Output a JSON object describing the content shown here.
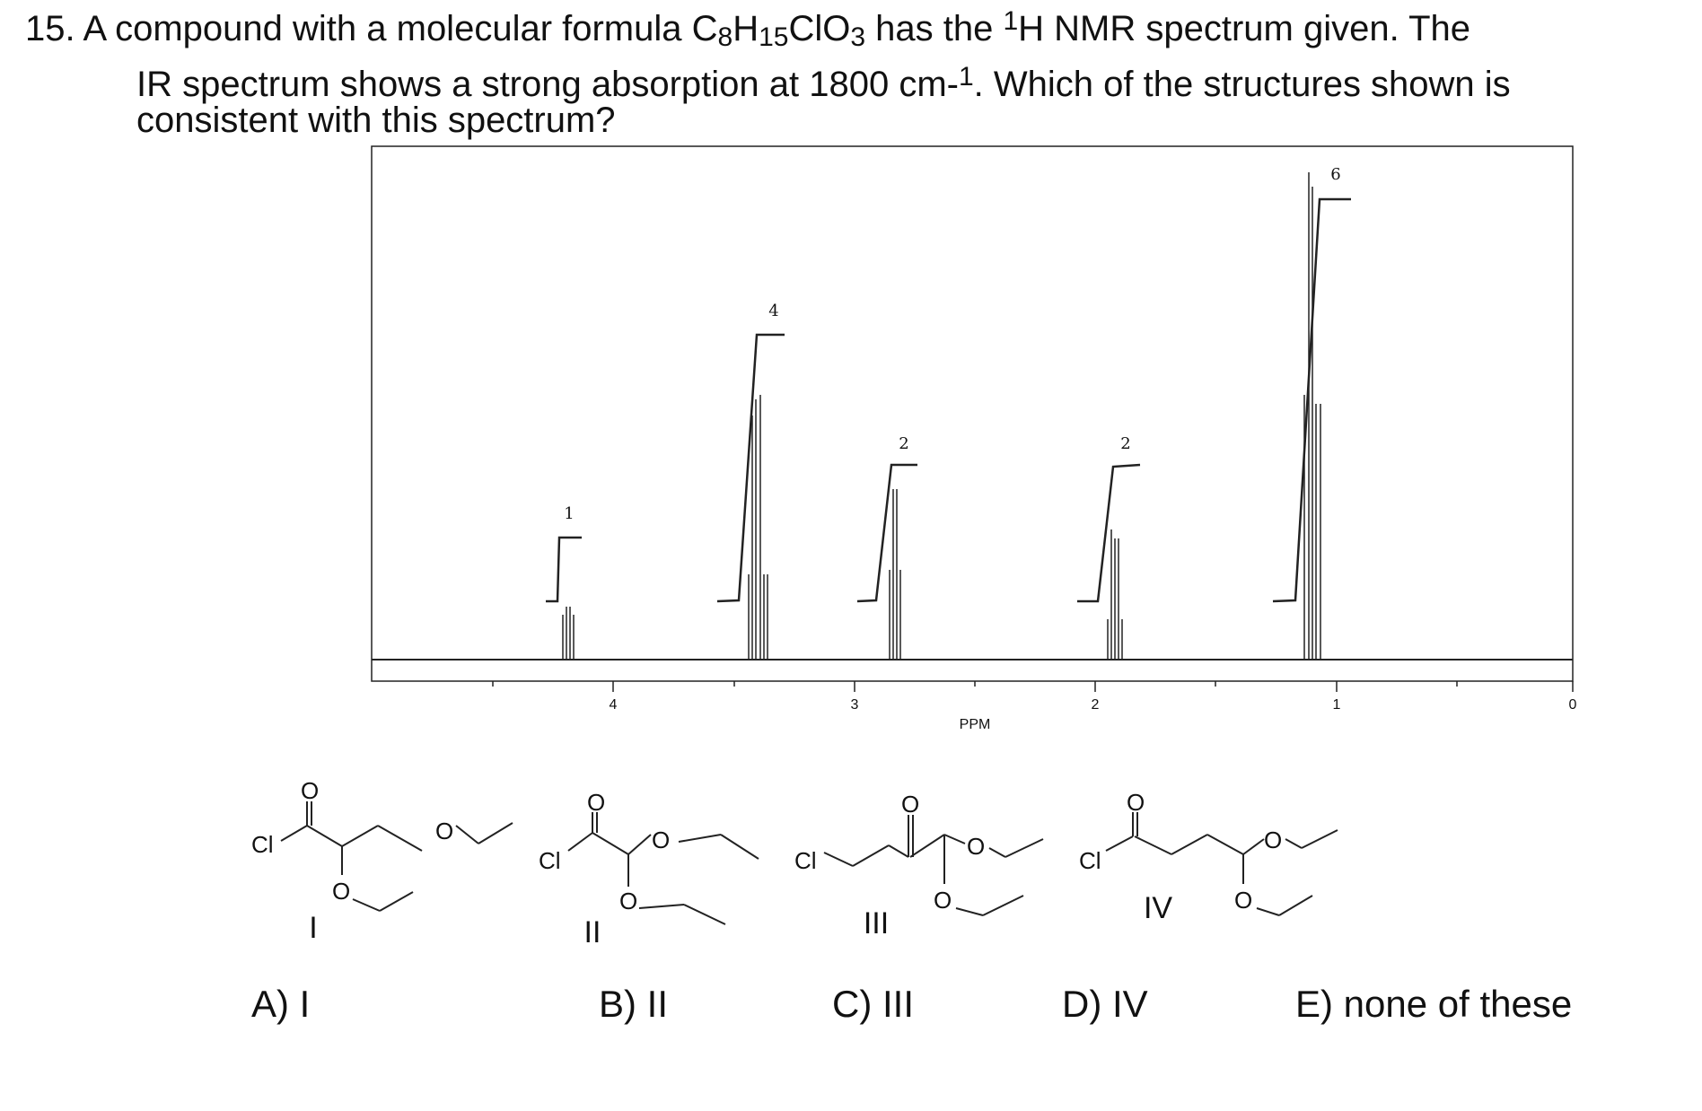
{
  "question": {
    "number": "15.",
    "line1_a": "A compound with a molecular formula C",
    "sub8": "8",
    "h": "H",
    "sub15": "15",
    "clo": "ClO",
    "sub3": "3",
    "line1_b": " has the ",
    "sup1": "1",
    "line1_c": "H NMR spectrum given.  The",
    "line2_a": "IR spectrum shows a strong absorption at 1800 cm-",
    "sup_neg1": "1",
    "line2_b": ".  Which of the structures shown is",
    "line3": "consistent with this spectrum?"
  },
  "spectrum": {
    "axis_label": "PPM",
    "ticks": [
      "4",
      "3",
      "2",
      "1",
      "0"
    ],
    "integrations": [
      "1",
      "4",
      "2",
      "2",
      "6"
    ],
    "peak_ppm": [
      4.2,
      3.45,
      2.85,
      1.95,
      1.1
    ]
  },
  "structures": {
    "I": {
      "roman": "I",
      "cl": "Cl",
      "o": "O"
    },
    "II": {
      "roman": "II",
      "cl": "Cl",
      "o": "O"
    },
    "III": {
      "roman": "III",
      "cl": "Cl",
      "o": "O"
    },
    "IV": {
      "roman": "IV",
      "cl": "Cl",
      "o": "O"
    }
  },
  "choices": {
    "a": "A) I",
    "b": "B) II",
    "c": "C) III",
    "d": "D) IV",
    "e": "E) none of these"
  }
}
